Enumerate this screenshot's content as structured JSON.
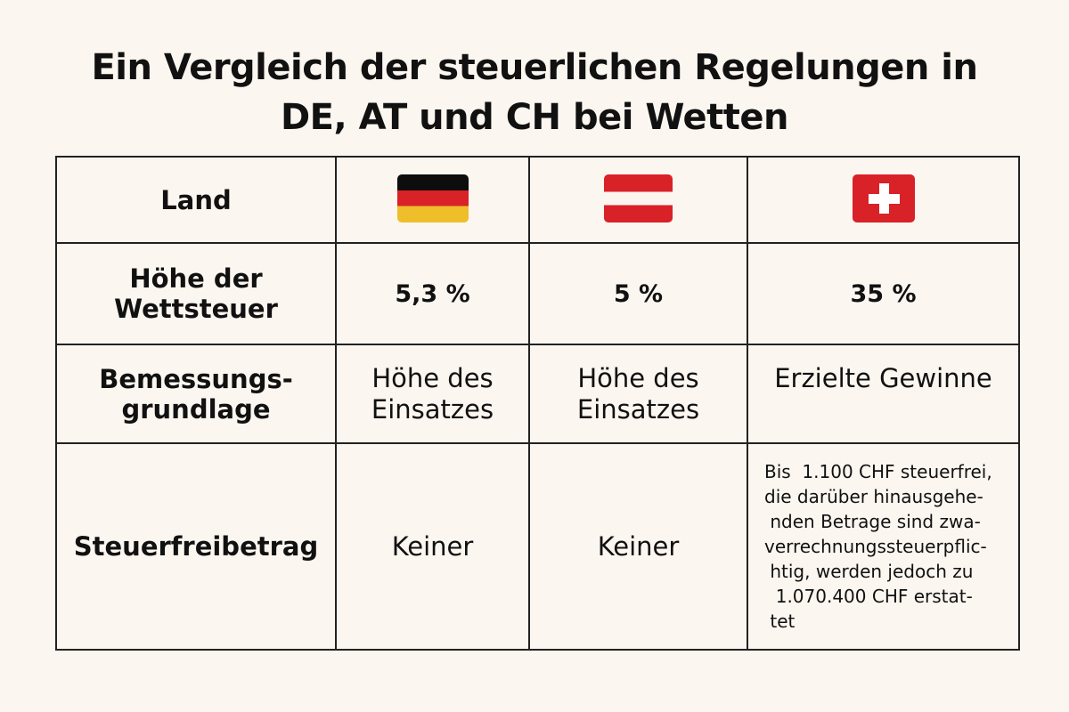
{
  "title_line1": "Ein Vergleich der steuerlichen Regelungen in",
  "title_line2": "DE, AT und CH bei Wetten",
  "table": {
    "header": {
      "label": "Land",
      "flags": [
        "germany-flag",
        "austria-flag",
        "switzerland-flag"
      ]
    },
    "rows": [
      {
        "label_lines": [
          "Höhe der",
          "Wettsteuer"
        ],
        "cells": [
          "5,3 %",
          "5 %",
          "35 %"
        ]
      },
      {
        "label_lines": [
          "Bemessungs-",
          "grundlage"
        ],
        "cells": [
          [
            "Höhe des",
            "Einsatzes"
          ],
          [
            "Höhe des",
            "Einsatzes"
          ],
          [
            "Erzielte Gewinne"
          ]
        ]
      },
      {
        "label_lines": [
          "Steuerfreibetrag"
        ],
        "cells": [
          "Keiner",
          "Keiner",
          [
            "Bis  1.100 CHF steuerfrei,",
            "die darüber hinausgehe-",
            " nden Betrage sind zwa-",
            "verrechnungssteuerpflic-",
            " htig, werden jedoch zu",
            "  1.070.400 CHF erstat-",
            " tet"
          ]
        ]
      }
    ]
  },
  "colors": {
    "background": "#fcf6f0",
    "red": "#d92128",
    "black": "#0d0d0d",
    "gold": "#eebf2b"
  }
}
